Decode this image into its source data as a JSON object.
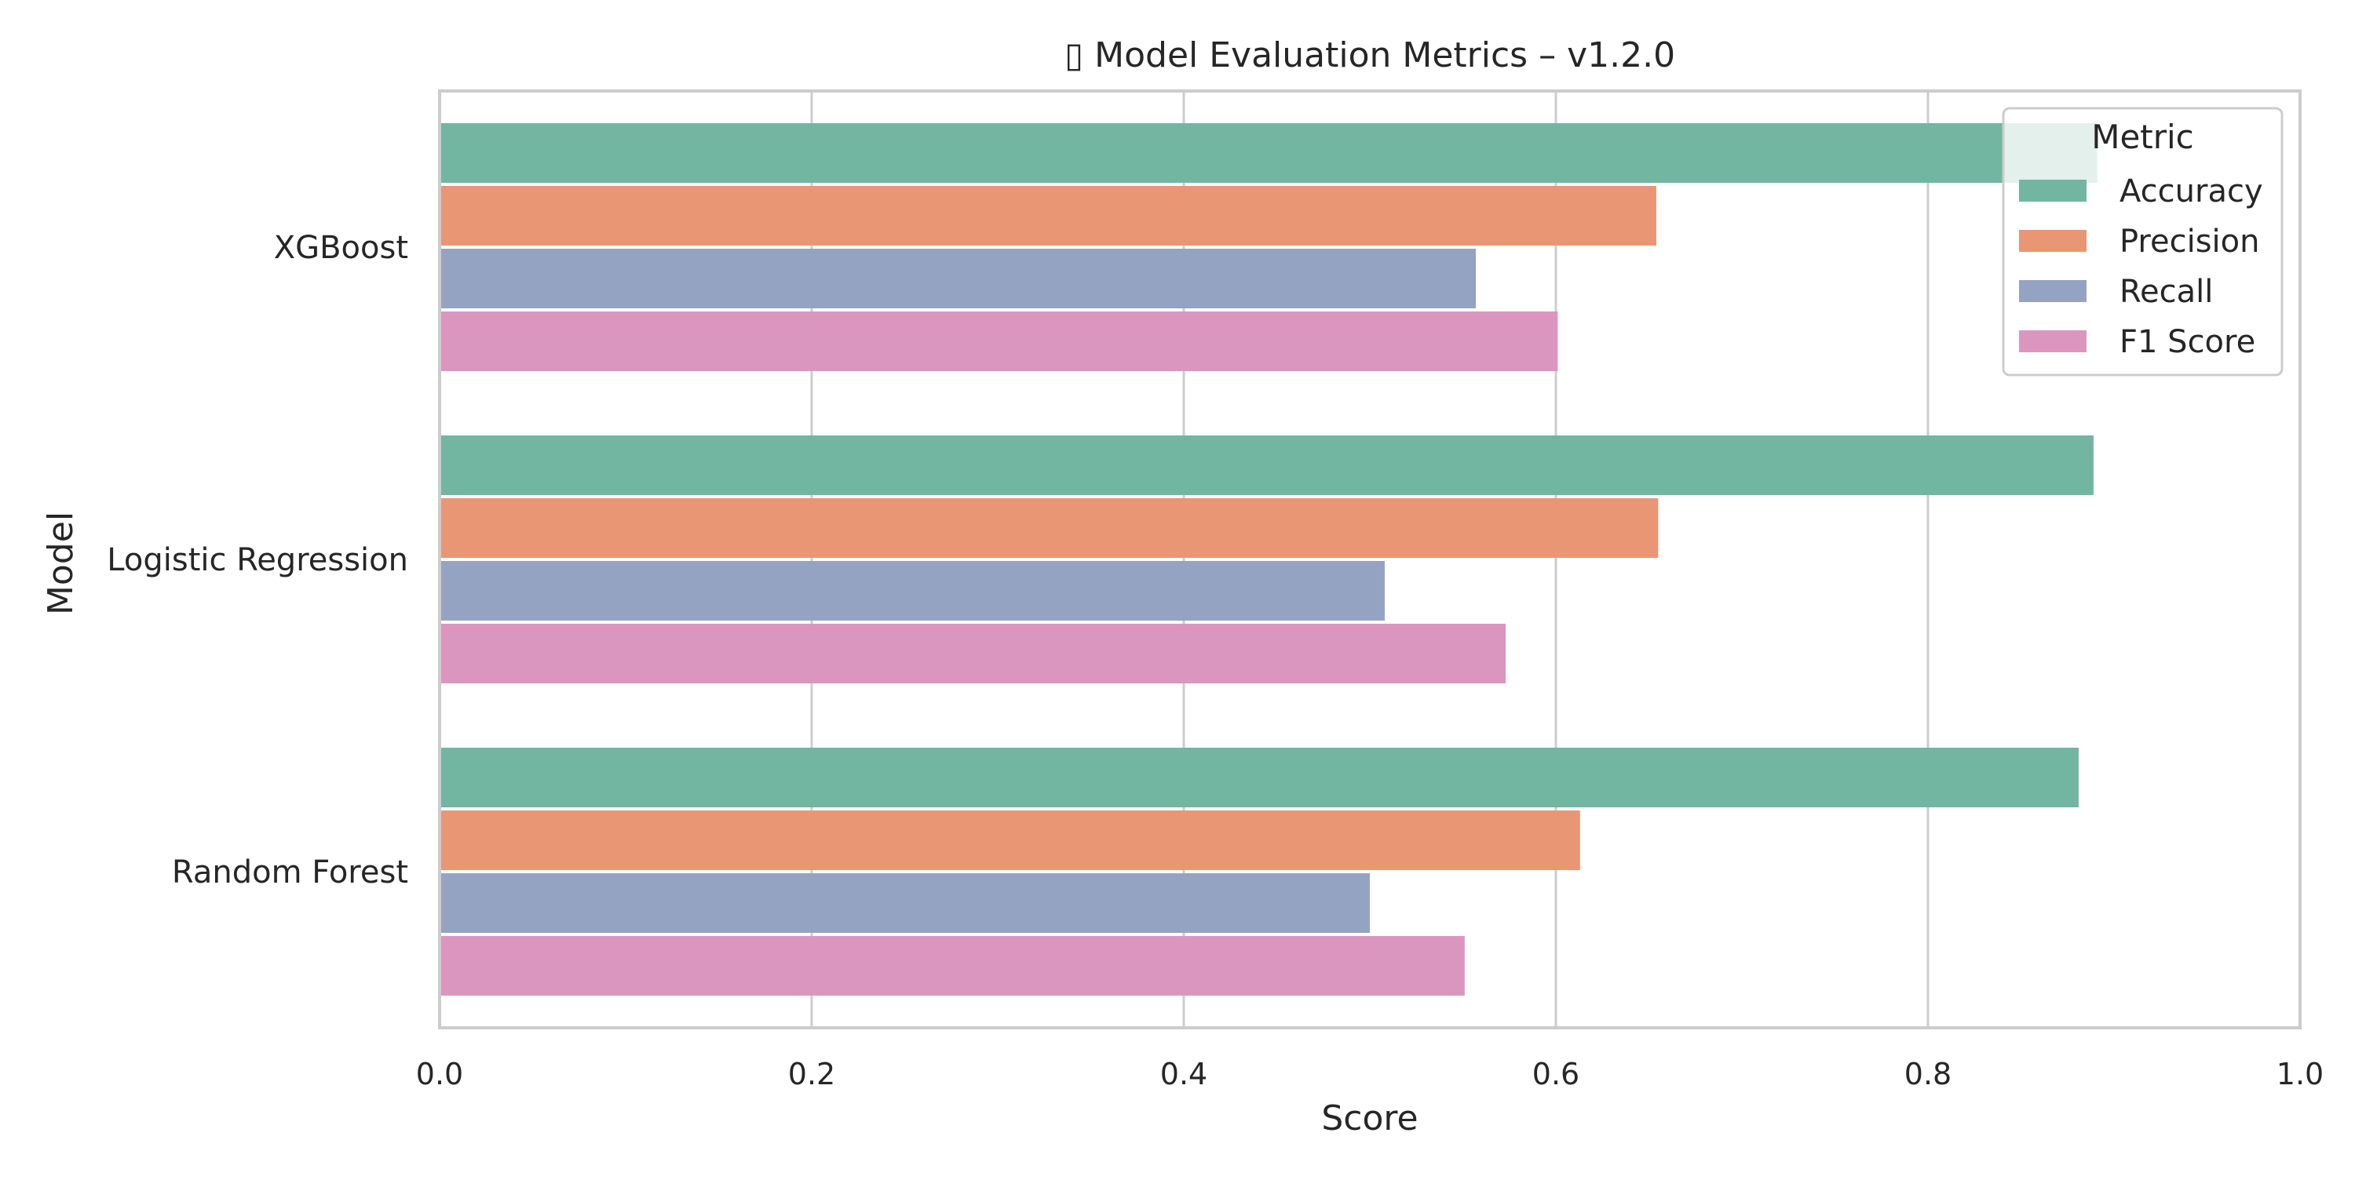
{
  "chart_data": {
    "type": "bar",
    "orientation": "horizontal",
    "title": "▯ Model Evaluation Metrics – v1.2.0",
    "xlabel": "Score",
    "ylabel": "Model",
    "xlim": [
      0.0,
      1.0
    ],
    "xticks": [
      "0.0",
      "0.2",
      "0.4",
      "0.6",
      "0.8",
      "1.0"
    ],
    "grid": true,
    "categories": [
      "XGBoost",
      "Logistic Regression",
      "Random Forest"
    ],
    "series": [
      {
        "name": "Accuracy",
        "color": "#72b6a1",
        "values": [
          0.891,
          0.889,
          0.881
        ]
      },
      {
        "name": "Precision",
        "color": "#e99675",
        "values": [
          0.654,
          0.655,
          0.613
        ]
      },
      {
        "name": "Recall",
        "color": "#95a3c3",
        "values": [
          0.557,
          0.508,
          0.5
        ]
      },
      {
        "name": "F1 Score",
        "color": "#db96c0",
        "values": [
          0.601,
          0.573,
          0.551
        ]
      }
    ],
    "legend": {
      "title": "Metric",
      "placement": "top-right"
    }
  }
}
